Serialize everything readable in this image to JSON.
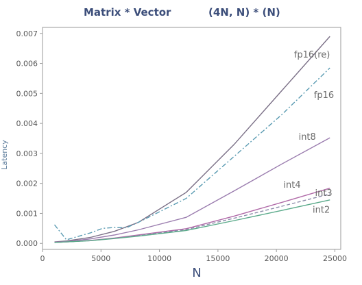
{
  "chart_data": {
    "type": "line",
    "title_left": "Matrix * Vector",
    "title_right": "(4N, N) * (N)",
    "xlabel": "N",
    "ylabel": "Latency",
    "xlim": [
      0,
      25500
    ],
    "ylim": [
      -0.0002,
      0.0072
    ],
    "x_ticks": [
      0,
      5000,
      10000,
      15000,
      20000,
      25000
    ],
    "y_ticks": [
      0.0,
      0.001,
      0.002,
      0.003,
      0.004,
      0.005,
      0.006,
      0.007
    ],
    "x_tick_labels": [
      "0",
      "5000",
      "10000",
      "15000",
      "20000",
      "25000"
    ],
    "y_tick_labels": [
      "0.000",
      "0.001",
      "0.002",
      "0.003",
      "0.004",
      "0.005",
      "0.006",
      "0.007"
    ],
    "grid": false,
    "legend": "inline labels",
    "series": [
      {
        "name": "fp16(re)",
        "color": "#7a6f86",
        "dash": "solid",
        "x": [
          1024,
          2048,
          4096,
          6144,
          8192,
          12288,
          16384,
          20480,
          24576
        ],
        "y": [
          5e-05,
          8e-05,
          0.0002,
          0.0004,
          0.0007,
          0.0017,
          0.0033,
          0.0051,
          0.0069
        ]
      },
      {
        "name": "fp16",
        "color": "#5a9bb2",
        "dash": "dashdot",
        "x": [
          1024,
          2048,
          4096,
          5120,
          6144,
          7168,
          8192,
          12288,
          16384,
          20480,
          24576
        ],
        "y": [
          0.00062,
          0.00012,
          0.00035,
          0.0005,
          0.00053,
          0.00052,
          0.0007,
          0.0015,
          0.0029,
          0.0043,
          0.00585
        ]
      },
      {
        "name": "int8",
        "color": "#9a7cae",
        "dash": "solid",
        "x": [
          1024,
          2048,
          4096,
          6144,
          8192,
          12288,
          16384,
          20480,
          24576
        ],
        "y": [
          4e-05,
          6e-05,
          0.00015,
          0.00028,
          0.00045,
          0.00087,
          0.00175,
          0.00265,
          0.00352
        ]
      },
      {
        "name": "int4",
        "color": "#b06aa8",
        "dash": "solid",
        "x": [
          1024,
          2048,
          4096,
          6144,
          8192,
          12288,
          16384,
          20480,
          24576
        ],
        "y": [
          3e-05,
          5e-05,
          0.0001,
          0.00018,
          0.00028,
          0.00049,
          0.00091,
          0.00137,
          0.00184
        ]
      },
      {
        "name": "int3",
        "color": "#8a8aa8",
        "dash": "dashed",
        "x": [
          1024,
          2048,
          4096,
          6144,
          8192,
          12288,
          16384,
          20480,
          24576
        ],
        "y": [
          3e-05,
          5e-05,
          9e-05,
          0.00017,
          0.00026,
          0.00046,
          0.00084,
          0.00124,
          0.00165
        ]
      },
      {
        "name": "int2",
        "color": "#5aaa8a",
        "dash": "solid",
        "x": [
          1024,
          2048,
          4096,
          6144,
          8192,
          12288,
          16384,
          20480,
          24576
        ],
        "y": [
          3e-05,
          5e-05,
          9e-05,
          0.00016,
          0.00024,
          0.00043,
          0.00076,
          0.0011,
          0.00145
        ]
      }
    ],
    "labels": [
      {
        "text": "fp16(re)",
        "x": 21500,
        "y": 0.0062
      },
      {
        "text": "fp16",
        "x": 23200,
        "y": 0.00485
      },
      {
        "text": "int8",
        "x": 21900,
        "y": 0.00345
      },
      {
        "text": "int4",
        "x": 20600,
        "y": 0.00185
      },
      {
        "text": "int3",
        "x": 23300,
        "y": 0.00158
      },
      {
        "text": "int2",
        "x": 23100,
        "y": 0.00102
      }
    ]
  }
}
